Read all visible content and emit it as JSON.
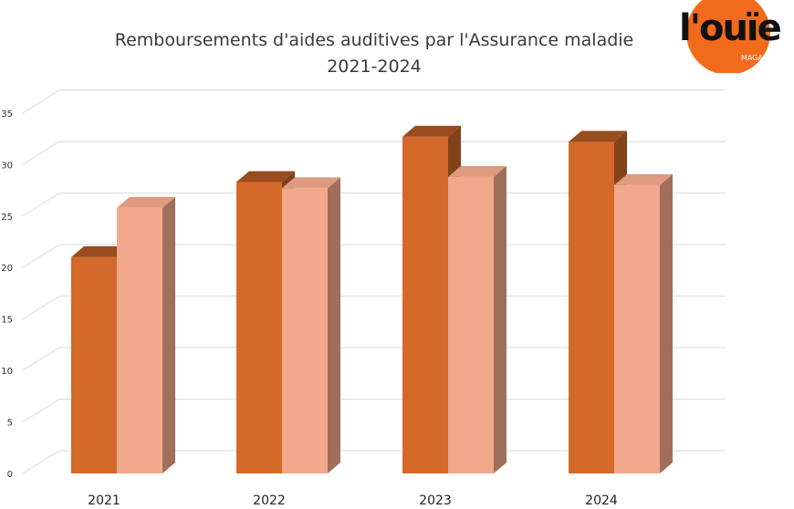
{
  "title_line1": "Remboursements d'aides auditives par l'Assurance maladie",
  "title_line2": "2021-2024",
  "logo": {
    "word": "l'ouïe",
    "sub": "MAGAZINE"
  },
  "colors": {
    "series1": "#d4692a",
    "series2": "#f2a88a",
    "grid": "#d9d9d9"
  },
  "chart_data": {
    "type": "bar",
    "categories": [
      "2021",
      "2022",
      "2023",
      "2024"
    ],
    "series": [
      {
        "values": [
          21.0,
          28.3,
          32.7,
          32.2
        ]
      },
      {
        "values": [
          25.8,
          27.7,
          28.8,
          28.0
        ]
      }
    ],
    "ylim": [
      0,
      35
    ],
    "yticks": [
      0,
      5,
      10,
      15,
      20,
      25,
      30,
      35
    ],
    "grid": true,
    "title": "Remboursements d'aides auditives par l'Assurance maladie 2021-2024"
  }
}
